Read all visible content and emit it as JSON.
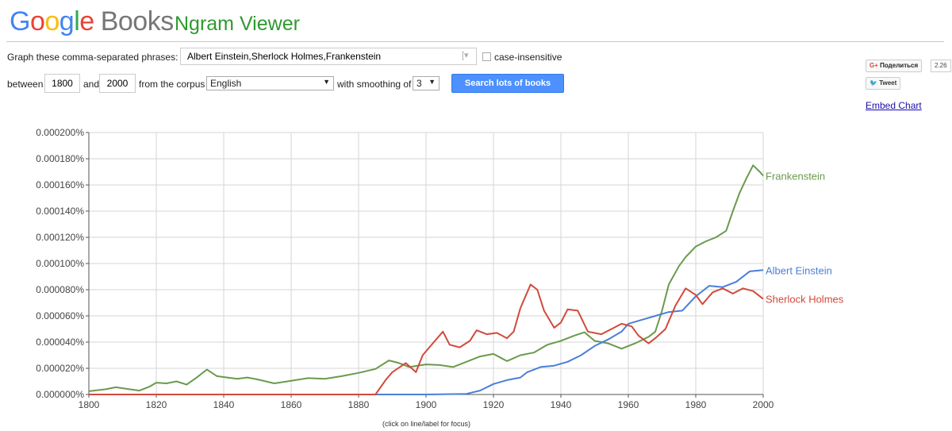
{
  "header": {
    "logo_letters": [
      "G",
      "o",
      "o",
      "g",
      "l",
      "e"
    ],
    "logo_books": "Books",
    "subtitle": "Ngram Viewer"
  },
  "form": {
    "phrases_label": "Graph these comma-separated phrases:",
    "phrases_value": "Albert Einstein,Sherlock Holmes,Frankenstein",
    "case_insensitive_label": "case-insensitive",
    "between_label": "between",
    "year_start": "1800",
    "and_label": "and",
    "year_end": "2000",
    "corpus_label": "from the corpus",
    "corpus_value": "English",
    "smoothing_label": "with smoothing of",
    "smoothing_value": "3",
    "search_button": "Search lots of books"
  },
  "social": {
    "share_label": "Поделиться",
    "share_count": "2.26",
    "tweet_label": "Tweet",
    "embed_label": "Embed Chart"
  },
  "footer": {
    "hint": "(click on line/label for focus)"
  },
  "chart_data": {
    "type": "line",
    "xlim": [
      1800,
      2000
    ],
    "ylim": [
      0,
      0.0002
    ],
    "x_ticks": [
      1800,
      1820,
      1840,
      1860,
      1880,
      1900,
      1920,
      1940,
      1960,
      1980,
      2000
    ],
    "y_tick_labels": [
      "0.000000%",
      "0.000020%",
      "0.000040%",
      "0.000060%",
      "0.000080%",
      "0.000100%",
      "0.000120%",
      "0.000140%",
      "0.000160%",
      "0.000180%",
      "0.000200%"
    ],
    "grid": true,
    "series": [
      {
        "name": "Frankenstein",
        "color": "#6a9a4d",
        "points": [
          [
            1800,
            2.5e-06
          ],
          [
            1805,
            4e-06
          ],
          [
            1808,
            5.5e-06
          ],
          [
            1812,
            4e-06
          ],
          [
            1815,
            3e-06
          ],
          [
            1818,
            6e-06
          ],
          [
            1820,
            9e-06
          ],
          [
            1823,
            8.5e-06
          ],
          [
            1826,
            1e-05
          ],
          [
            1829,
            7.5e-06
          ],
          [
            1832,
            1.3e-05
          ],
          [
            1835,
            1.9e-05
          ],
          [
            1838,
            1.4e-05
          ],
          [
            1841,
            1.3e-05
          ],
          [
            1844,
            1.2e-05
          ],
          [
            1847,
            1.3e-05
          ],
          [
            1850,
            1.15e-05
          ],
          [
            1855,
            8.5e-06
          ],
          [
            1860,
            1.05e-05
          ],
          [
            1865,
            1.25e-05
          ],
          [
            1870,
            1.2e-05
          ],
          [
            1875,
            1.4e-05
          ],
          [
            1880,
            1.65e-05
          ],
          [
            1885,
            1.95e-05
          ],
          [
            1889,
            2.6e-05
          ],
          [
            1892,
            2.4e-05
          ],
          [
            1895,
            2.1e-05
          ],
          [
            1900,
            2.3e-05
          ],
          [
            1904,
            2.25e-05
          ],
          [
            1908,
            2.1e-05
          ],
          [
            1912,
            2.5e-05
          ],
          [
            1916,
            2.9e-05
          ],
          [
            1920,
            3.1e-05
          ],
          [
            1924,
            2.55e-05
          ],
          [
            1928,
            3e-05
          ],
          [
            1932,
            3.2e-05
          ],
          [
            1936,
            3.8e-05
          ],
          [
            1940,
            4.1e-05
          ],
          [
            1944,
            4.5e-05
          ],
          [
            1947,
            4.75e-05
          ],
          [
            1950,
            4.1e-05
          ],
          [
            1954,
            3.9e-05
          ],
          [
            1958,
            3.5e-05
          ],
          [
            1962,
            3.9e-05
          ],
          [
            1966,
            4.4e-05
          ],
          [
            1968,
            4.8e-05
          ],
          [
            1970,
            6.4e-05
          ],
          [
            1972,
            8.4e-05
          ],
          [
            1975,
            9.8e-05
          ],
          [
            1977,
            0.000105
          ],
          [
            1980,
            0.000113
          ],
          [
            1983,
            0.000117
          ],
          [
            1986,
            0.00012
          ],
          [
            1989,
            0.000125
          ],
          [
            1991,
            0.00014
          ],
          [
            1993,
            0.000154
          ],
          [
            1995,
            0.000165
          ],
          [
            1997,
            0.000175
          ],
          [
            1999,
            0.00017
          ],
          [
            2000,
            0.000167
          ]
        ]
      },
      {
        "name": "Albert Einstein",
        "color": "#4a7fd8",
        "points": [
          [
            1800,
            0
          ],
          [
            1900,
            0
          ],
          [
            1912,
            5e-07
          ],
          [
            1916,
            3e-06
          ],
          [
            1920,
            8e-06
          ],
          [
            1924,
            1.1e-05
          ],
          [
            1928,
            1.3e-05
          ],
          [
            1930,
            1.7e-05
          ],
          [
            1934,
            2.1e-05
          ],
          [
            1938,
            2.2e-05
          ],
          [
            1942,
            2.5e-05
          ],
          [
            1946,
            3e-05
          ],
          [
            1950,
            3.7e-05
          ],
          [
            1954,
            4.2e-05
          ],
          [
            1958,
            4.8e-05
          ],
          [
            1960,
            5.4e-05
          ],
          [
            1964,
            5.7e-05
          ],
          [
            1968,
            6e-05
          ],
          [
            1972,
            6.3e-05
          ],
          [
            1976,
            6.4e-05
          ],
          [
            1980,
            7.5e-05
          ],
          [
            1984,
            8.3e-05
          ],
          [
            1988,
            8.2e-05
          ],
          [
            1992,
            8.6e-05
          ],
          [
            1996,
            9.4e-05
          ],
          [
            2000,
            9.5e-05
          ]
        ]
      },
      {
        "name": "Sherlock Holmes",
        "color": "#d04a3c",
        "points": [
          [
            1800,
            0
          ],
          [
            1885,
            0
          ],
          [
            1888,
            1.1e-05
          ],
          [
            1890,
            1.7e-05
          ],
          [
            1894,
            2.4e-05
          ],
          [
            1897,
            1.7e-05
          ],
          [
            1899,
            3e-05
          ],
          [
            1902,
            3.9e-05
          ],
          [
            1905,
            4.8e-05
          ],
          [
            1907,
            3.8e-05
          ],
          [
            1910,
            3.6e-05
          ],
          [
            1913,
            4.1e-05
          ],
          [
            1915,
            4.9e-05
          ],
          [
            1918,
            4.6e-05
          ],
          [
            1921,
            4.7e-05
          ],
          [
            1924,
            4.3e-05
          ],
          [
            1926,
            4.8e-05
          ],
          [
            1928,
            6.6e-05
          ],
          [
            1931,
            8.4e-05
          ],
          [
            1933,
            8e-05
          ],
          [
            1935,
            6.4e-05
          ],
          [
            1938,
            5.1e-05
          ],
          [
            1940,
            5.5e-05
          ],
          [
            1942,
            6.5e-05
          ],
          [
            1945,
            6.4e-05
          ],
          [
            1948,
            4.8e-05
          ],
          [
            1952,
            4.6e-05
          ],
          [
            1955,
            5e-05
          ],
          [
            1958,
            5.4e-05
          ],
          [
            1961,
            5.2e-05
          ],
          [
            1963,
            4.5e-05
          ],
          [
            1966,
            3.9e-05
          ],
          [
            1968,
            4.3e-05
          ],
          [
            1971,
            5e-05
          ],
          [
            1974,
            6.8e-05
          ],
          [
            1977,
            8.1e-05
          ],
          [
            1980,
            7.6e-05
          ],
          [
            1982,
            6.9e-05
          ],
          [
            1985,
            7.8e-05
          ],
          [
            1988,
            8.1e-05
          ],
          [
            1991,
            7.7e-05
          ],
          [
            1994,
            8.1e-05
          ],
          [
            1997,
            7.9e-05
          ],
          [
            2000,
            7.3e-05
          ]
        ]
      }
    ]
  }
}
